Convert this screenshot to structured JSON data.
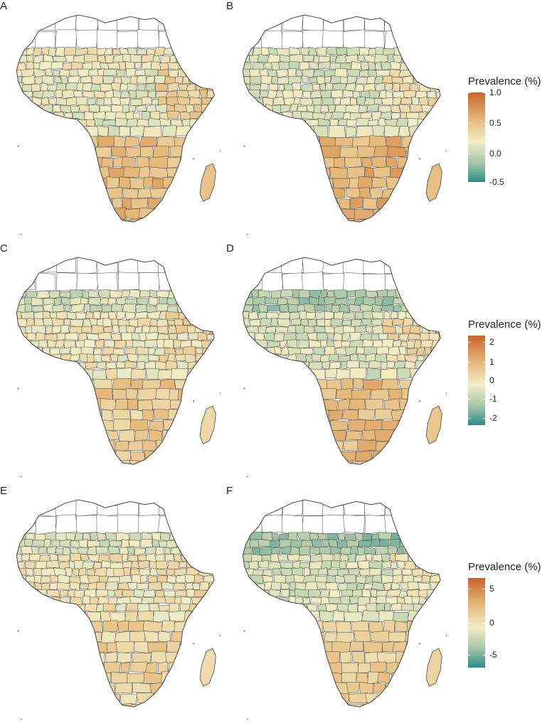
{
  "panels": [
    {
      "label": "A",
      "scale": "r1",
      "north": 0.58,
      "sahel": 0.52,
      "east": 0.62,
      "central": 0.47,
      "south": 0.74,
      "madagascar": 0.7
    },
    {
      "label": "B",
      "scale": "r1",
      "north": 0.55,
      "sahel": 0.42,
      "east": 0.55,
      "central": 0.44,
      "south": 0.76,
      "madagascar": 0.72
    },
    {
      "label": "C",
      "scale": "r2",
      "north": 0.58,
      "sahel": 0.4,
      "east": 0.6,
      "central": 0.52,
      "south": 0.66,
      "madagascar": 0.6
    },
    {
      "label": "D",
      "scale": "r2",
      "north": 0.5,
      "sahel": 0.28,
      "east": 0.58,
      "central": 0.44,
      "south": 0.72,
      "madagascar": 0.68
    },
    {
      "label": "E",
      "scale": "r3",
      "north": 0.56,
      "sahel": 0.44,
      "east": 0.56,
      "central": 0.54,
      "south": 0.62,
      "madagascar": 0.58
    },
    {
      "label": "F",
      "scale": "r3",
      "north": 0.46,
      "sahel": 0.24,
      "east": 0.52,
      "central": 0.42,
      "south": 0.64,
      "madagascar": 0.62
    }
  ],
  "legends": [
    {
      "title": "Prevalence (%)",
      "ticks": [
        "1.0",
        "0.5",
        "0.0",
        "-0.5"
      ],
      "tick_positions": [
        0.0,
        0.34,
        0.68,
        1.0
      ]
    },
    {
      "title": "Prevalence (%)",
      "ticks": [
        "2",
        "1",
        "0",
        "-1",
        "-2"
      ],
      "tick_positions": [
        0.07,
        0.29,
        0.5,
        0.71,
        0.92
      ]
    },
    {
      "title": "Prevalence (%)",
      "ticks": [
        "5",
        "0",
        "-5"
      ],
      "tick_positions": [
        0.12,
        0.5,
        0.86
      ]
    }
  ],
  "colors": {
    "high": "#c8642a",
    "mid_high": "#e5b87a",
    "mid": "#f2edc6",
    "mid_low": "#a9c7a6",
    "low": "#2c8c8a",
    "na": "#ffffff",
    "border": "#444444"
  }
}
